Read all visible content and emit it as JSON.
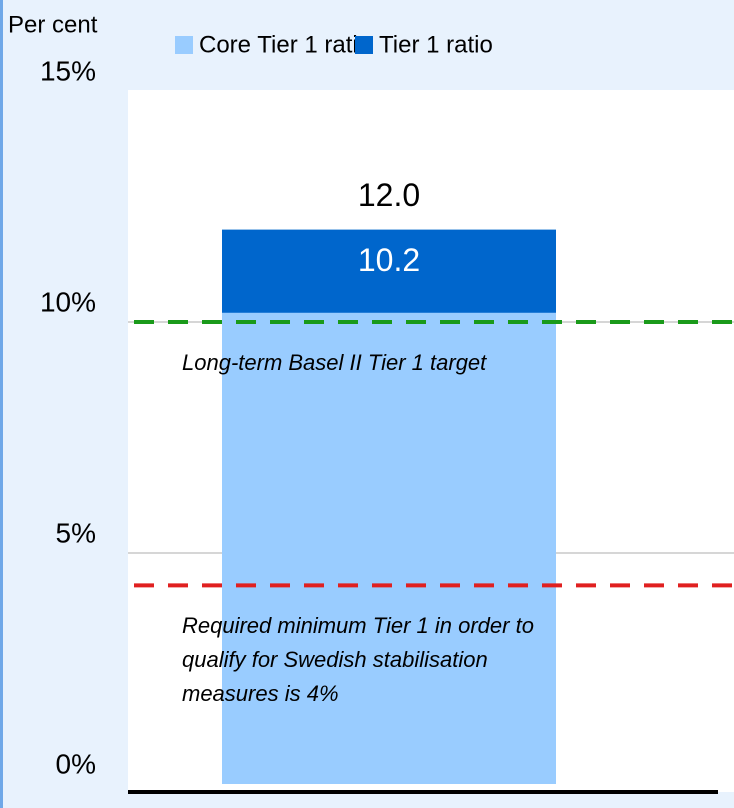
{
  "chart_data": {
    "type": "bar",
    "overlap": true,
    "y_axis_label": "Per cent",
    "categories": [
      null
    ],
    "series": [
      {
        "name": "Core Tier 1 ratio",
        "color": "#99ccff",
        "values": [
          10.2
        ],
        "value_labels": [
          "10.2"
        ],
        "label_color": "#ffffff"
      },
      {
        "name": "Tier 1 ratio",
        "color": "#0066cc",
        "values": [
          12.0
        ],
        "value_labels": [
          "12.0"
        ],
        "label_color": "#000000"
      }
    ],
    "ylim": [
      0,
      15
    ],
    "yticks": [
      {
        "value": 0,
        "label": "0%"
      },
      {
        "value": 5,
        "label": "5%"
      },
      {
        "value": 10,
        "label": "10%"
      },
      {
        "value": 15,
        "label": "15%"
      }
    ],
    "grid": true,
    "legend": "top",
    "reference_lines": [
      {
        "value": 10,
        "color": "#1a9a1a",
        "label_lines": [
          "Long-term Basel II Tier 1 target"
        ]
      },
      {
        "value": 4.3,
        "color": "#e02020",
        "label_lines": [
          "Required minimum Tier 1 in order to",
          "qualify for Swedish stabilisation",
          "measures is 4%"
        ]
      }
    ]
  }
}
